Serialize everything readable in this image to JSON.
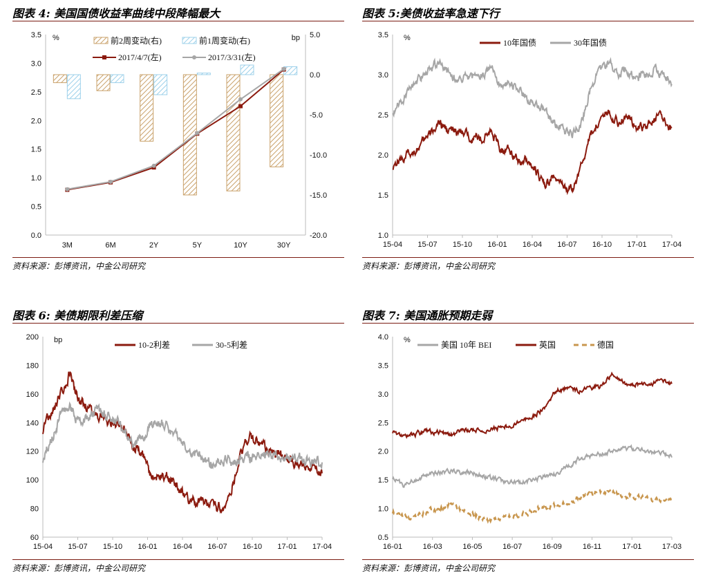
{
  "colors": {
    "maroon": "#8b1a0e",
    "gray": "#a6a6a6",
    "gold": "#c8964e",
    "lightblue": "#9cd0ea",
    "tan": "#c9a16a",
    "rule": "#7a1a10"
  },
  "panels": [
    {
      "title": "图表 4: 美国国债收益率曲线中段降幅最大",
      "source": "资料来源：彭博资讯，中金公司研究"
    },
    {
      "title": "图表 5:美债收益率急速下行",
      "source": "资料来源：彭博资讯，中金公司研究"
    },
    {
      "title": "图表 6: 美债期限利差压缩",
      "source": "资料来源：彭博资讯，中金公司研究"
    },
    {
      "title": "图表 7: 美国通胀预期走弱",
      "source": "资料来源：彭博资讯，中金公司研究"
    }
  ],
  "chart_data": [
    {
      "type": "bar+line",
      "categories": [
        "3M",
        "6M",
        "2Y",
        "5Y",
        "10Y",
        "30Y"
      ],
      "left_unit": "%",
      "right_unit": "bp",
      "ylim_left": [
        0,
        3.5
      ],
      "ylim_right": [
        -20,
        5
      ],
      "left_ticks": [
        "0.0",
        "0.5",
        "1.0",
        "1.5",
        "2.0",
        "2.5",
        "3.0",
        "3.5"
      ],
      "right_ticks": [
        "-20.0",
        "-15.0",
        "-10.0",
        "-5.0",
        "0.0",
        "5.0"
      ],
      "bar_series": [
        {
          "name": "前2周变动(右)",
          "values": [
            -1.0,
            -2.0,
            -8.3,
            -15.0,
            -14.5,
            -11.5
          ]
        },
        {
          "name": "前1周变动(右)",
          "values": [
            -3.0,
            -1.0,
            -2.5,
            0.2,
            1.2,
            1.0
          ]
        }
      ],
      "line_series": [
        {
          "name": "2017/4/7(左)",
          "values": [
            0.79,
            0.92,
            1.18,
            1.77,
            2.25,
            2.89
          ]
        },
        {
          "name": "2017/3/31(左)",
          "values": [
            0.8,
            0.93,
            1.21,
            1.78,
            2.37,
            2.9
          ]
        }
      ]
    },
    {
      "type": "line",
      "unit": "%",
      "ylim": [
        1.0,
        3.5
      ],
      "yticks": [
        "1.0",
        "1.5",
        "2.0",
        "2.5",
        "3.0",
        "3.5"
      ],
      "xticks": [
        "15-04",
        "15-07",
        "15-10",
        "16-01",
        "16-04",
        "16-07",
        "16-10",
        "17-01",
        "17-04"
      ],
      "series": [
        {
          "name": "10年国债",
          "anchors": [
            [
              0,
              1.87
            ],
            [
              3,
              2.1
            ],
            [
              5,
              2.38
            ],
            [
              7,
              2.28
            ],
            [
              10,
              2.2
            ],
            [
              11,
              2.3
            ],
            [
              12,
              2.05
            ],
            [
              13,
              2.08
            ],
            [
              14,
              1.92
            ],
            [
              15,
              1.95
            ],
            [
              16,
              1.78
            ],
            [
              17,
              1.6
            ],
            [
              18,
              1.75
            ],
            [
              19,
              1.58
            ],
            [
              20,
              1.55
            ],
            [
              21,
              1.88
            ],
            [
              22,
              2.25
            ],
            [
              23,
              2.45
            ],
            [
              24,
              2.55
            ],
            [
              25,
              2.4
            ],
            [
              26,
              2.5
            ],
            [
              27,
              2.33
            ],
            [
              28,
              2.35
            ],
            [
              29,
              2.45
            ],
            [
              30,
              2.47
            ],
            [
              31,
              2.3
            ]
          ]
        },
        {
          "name": "30年国债",
          "anchors": [
            [
              0,
              2.55
            ],
            [
              3,
              2.95
            ],
            [
              5,
              3.15
            ],
            [
              7,
              2.95
            ],
            [
              10,
              3.0
            ],
            [
              11,
              3.08
            ],
            [
              12,
              2.85
            ],
            [
              13,
              2.92
            ],
            [
              14,
              2.78
            ],
            [
              15,
              2.7
            ],
            [
              16,
              2.65
            ],
            [
              17,
              2.5
            ],
            [
              18,
              2.4
            ],
            [
              19,
              2.3
            ],
            [
              20,
              2.25
            ],
            [
              21,
              2.4
            ],
            [
              22,
              2.85
            ],
            [
              23,
              3.05
            ],
            [
              24,
              3.15
            ],
            [
              25,
              3.0
            ],
            [
              26,
              3.08
            ],
            [
              27,
              2.95
            ],
            [
              28,
              3.0
            ],
            [
              29,
              3.05
            ],
            [
              30,
              3.02
            ],
            [
              31,
              2.92
            ]
          ]
        }
      ]
    },
    {
      "type": "line",
      "unit": "bp",
      "ylim": [
        60,
        200
      ],
      "yticks": [
        "60",
        "80",
        "100",
        "120",
        "140",
        "160",
        "180",
        "200"
      ],
      "xticks": [
        "15-04",
        "15-07",
        "15-10",
        "16-01",
        "16-04",
        "16-07",
        "16-10",
        "17-01",
        "17-04"
      ],
      "series": [
        {
          "name": "10-2利差",
          "anchors": [
            [
              0,
              135
            ],
            [
              2,
              160
            ],
            [
              3,
              175
            ],
            [
              4,
              155
            ],
            [
              6,
              145
            ],
            [
              8,
              140
            ],
            [
              9,
              135
            ],
            [
              10,
              123
            ],
            [
              11,
              120
            ],
            [
              12,
              100
            ],
            [
              13,
              102
            ],
            [
              14,
              102
            ],
            [
              15,
              95
            ],
            [
              16,
              88
            ],
            [
              17,
              85
            ],
            [
              18,
              85
            ],
            [
              19,
              80
            ],
            [
              20,
              82
            ],
            [
              21,
              95
            ],
            [
              22,
              120
            ],
            [
              23,
              130
            ],
            [
              24,
              127
            ],
            [
              25,
              120
            ],
            [
              26,
              120
            ],
            [
              27,
              115
            ],
            [
              28,
              112
            ],
            [
              29,
              110
            ],
            [
              30,
              108
            ],
            [
              31,
              105
            ]
          ]
        },
        {
          "name": "30-5利差",
          "anchors": [
            [
              0,
              115
            ],
            [
              2,
              145
            ],
            [
              3,
              150
            ],
            [
              4,
              140
            ],
            [
              6,
              148
            ],
            [
              8,
              142
            ],
            [
              9,
              135
            ],
            [
              10,
              125
            ],
            [
              11,
              130
            ],
            [
              12,
              138
            ],
            [
              13,
              140
            ],
            [
              14,
              135
            ],
            [
              15,
              130
            ],
            [
              16,
              122
            ],
            [
              17,
              118
            ],
            [
              18,
              115
            ],
            [
              19,
              110
            ],
            [
              20,
              115
            ],
            [
              21,
              112
            ],
            [
              22,
              115
            ],
            [
              23,
              115
            ],
            [
              24,
              118
            ],
            [
              25,
              118
            ],
            [
              26,
              117
            ],
            [
              27,
              115
            ],
            [
              28,
              115
            ],
            [
              29,
              114
            ],
            [
              30,
              112
            ],
            [
              31,
              112
            ]
          ]
        }
      ]
    },
    {
      "type": "line",
      "unit": "%",
      "ylim": [
        0.5,
        4.0
      ],
      "yticks": [
        "0.5",
        "1.0",
        "1.5",
        "2.0",
        "2.5",
        "3.0",
        "3.5",
        "4.0"
      ],
      "xticks": [
        "16-01",
        "16-03",
        "16-05",
        "16-07",
        "16-09",
        "16-11",
        "17-01",
        "17-03"
      ],
      "series": [
        {
          "name": "美国 10年 BEI",
          "anchors": [
            [
              0,
              1.55
            ],
            [
              1,
              1.4
            ],
            [
              2,
              1.5
            ],
            [
              3,
              1.6
            ],
            [
              5,
              1.65
            ],
            [
              7,
              1.62
            ],
            [
              8,
              1.55
            ],
            [
              9,
              1.5
            ],
            [
              11,
              1.45
            ],
            [
              12,
              1.5
            ],
            [
              13,
              1.55
            ],
            [
              14,
              1.6
            ],
            [
              15,
              1.72
            ],
            [
              16,
              1.85
            ],
            [
              17,
              1.92
            ],
            [
              18,
              1.95
            ],
            [
              19,
              2.0
            ],
            [
              20,
              2.05
            ],
            [
              21,
              2.05
            ],
            [
              22,
              2.0
            ],
            [
              23,
              1.95
            ],
            [
              24,
              1.92
            ]
          ]
        },
        {
          "name": "英国",
          "anchors": [
            [
              0,
              2.35
            ],
            [
              1,
              2.25
            ],
            [
              2,
              2.3
            ],
            [
              3,
              2.35
            ],
            [
              5,
              2.3
            ],
            [
              7,
              2.4
            ],
            [
              8,
              2.35
            ],
            [
              9,
              2.4
            ],
            [
              11,
              2.5
            ],
            [
              12,
              2.6
            ],
            [
              13,
              2.75
            ],
            [
              14,
              3.05
            ],
            [
              15,
              3.1
            ],
            [
              16,
              3.05
            ],
            [
              17,
              3.1
            ],
            [
              18,
              3.15
            ],
            [
              19,
              3.35
            ],
            [
              20,
              3.2
            ],
            [
              21,
              3.15
            ],
            [
              22,
              3.2
            ],
            [
              23,
              3.22
            ],
            [
              24,
              3.18
            ]
          ]
        },
        {
          "name": "德国",
          "anchors": [
            [
              0,
              0.95
            ],
            [
              1,
              0.85
            ],
            [
              2,
              0.85
            ],
            [
              3,
              0.95
            ],
            [
              5,
              1.05
            ],
            [
              7,
              0.9
            ],
            [
              8,
              0.78
            ],
            [
              9,
              0.82
            ],
            [
              11,
              0.9
            ],
            [
              12,
              0.95
            ],
            [
              13,
              1.02
            ],
            [
              14,
              1.05
            ],
            [
              15,
              1.1
            ],
            [
              16,
              1.18
            ],
            [
              17,
              1.25
            ],
            [
              18,
              1.3
            ],
            [
              19,
              1.3
            ],
            [
              20,
              1.22
            ],
            [
              21,
              1.2
            ],
            [
              22,
              1.15
            ],
            [
              23,
              1.15
            ],
            [
              24,
              1.18
            ]
          ]
        }
      ]
    }
  ]
}
